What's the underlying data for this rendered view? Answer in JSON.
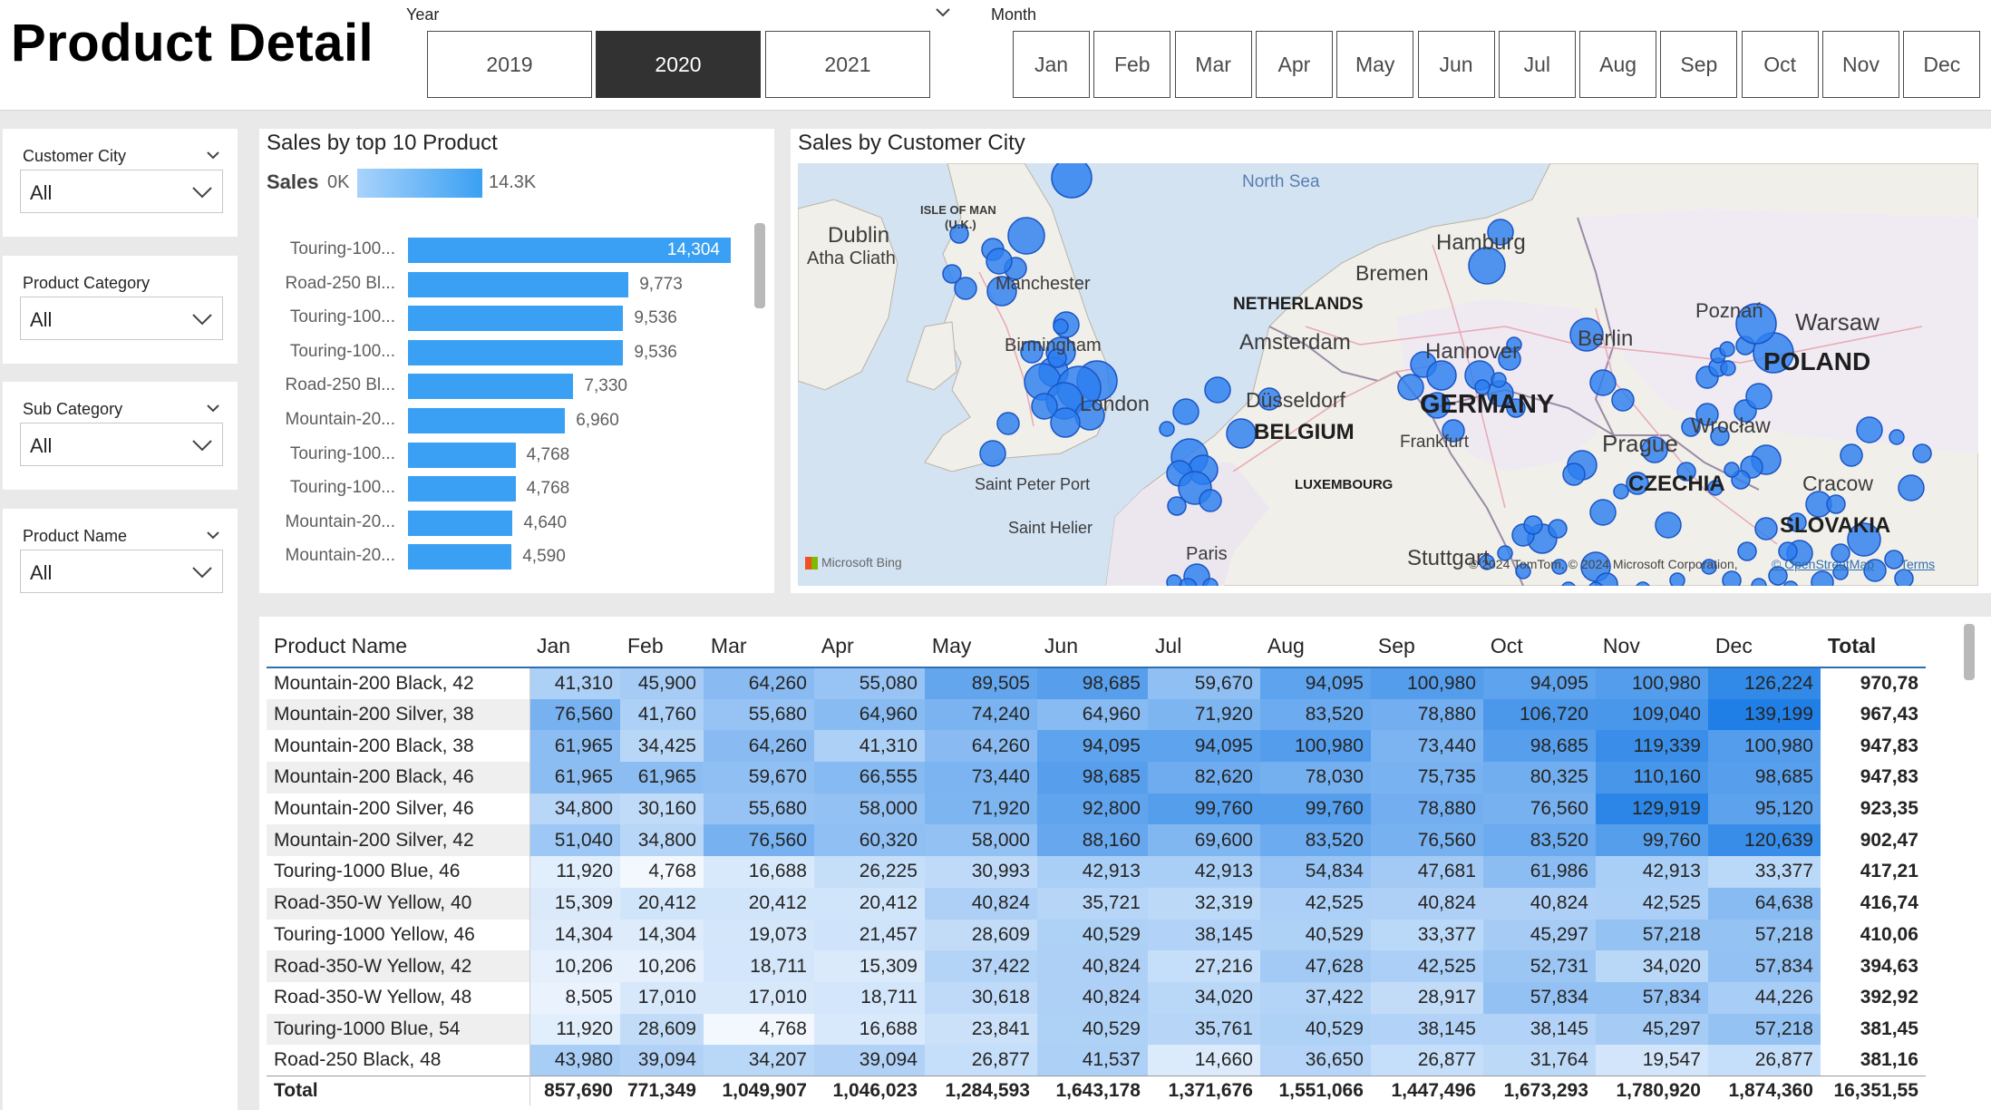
{
  "page_title": "Product Detail",
  "year_slicer": {
    "label": "Year",
    "options": [
      "2019",
      "2020",
      "2021"
    ],
    "selected": "2020"
  },
  "month_slicer": {
    "label": "Month",
    "options": [
      "Jan",
      "Feb",
      "Mar",
      "Apr",
      "May",
      "Jun",
      "Jul",
      "Aug",
      "Sep",
      "Oct",
      "Nov",
      "Dec"
    ]
  },
  "left_slicers": [
    {
      "label": "Customer City",
      "value": "All"
    },
    {
      "label": "Product Category",
      "value": "All"
    },
    {
      "label": "Sub Category",
      "value": "All"
    },
    {
      "label": "Product Name",
      "value": "All"
    }
  ],
  "bar_chart": {
    "title": "Sales by top 10 Product",
    "legend_label": "Sales",
    "legend_min": "0K",
    "legend_max": "14.3K"
  },
  "chart_data": {
    "type": "bar",
    "orientation": "horizontal",
    "title": "Sales by top 10 Product",
    "categories": [
      "Touring-100...",
      "Road-250 Bl...",
      "Touring-100...",
      "Touring-100...",
      "Road-250 Bl...",
      "Mountain-20...",
      "Touring-100...",
      "Touring-100...",
      "Mountain-20...",
      "Mountain-20..."
    ],
    "values": [
      14304,
      9773,
      9536,
      9536,
      7330,
      6960,
      4768,
      4768,
      4640,
      4590
    ],
    "value_labels": [
      "14,304",
      "9,773",
      "9,536",
      "9,536",
      "7,330",
      "6,960",
      "4,768",
      "4,768",
      "4,640",
      "4,590"
    ],
    "xlim": [
      0,
      14304
    ],
    "color_gradient": [
      "#a9d3fb",
      "#3aa0f3"
    ]
  },
  "map": {
    "title": "Sales by Customer City",
    "labels": {
      "north_sea": "North Sea",
      "isle_of_man": "ISLE OF MAN",
      "uk": "(U.K.)",
      "dublin": "Dublin",
      "atha_cliath": "Atha Cliath",
      "hamburg": "Hamburg",
      "bremen": "Bremen",
      "netherlands": "NETHERLANDS",
      "poznan": "Poznań",
      "warsaw": "Warsaw",
      "manchester": "Manchester",
      "amsterdam": "Amsterdam",
      "hannover": "Hannover",
      "berlin": "Berlin",
      "poland": "POLAND",
      "birmingham": "Birmingham",
      "dusseldorf": "Düsseldorf",
      "germany": "GERMANY",
      "london": "London",
      "belgium": "BELGIUM",
      "wroclaw": "Wrocław",
      "frankfurt": "Frankfurt",
      "prague": "Prague",
      "saint_peter_port": "Saint Peter Port",
      "luxembourg": "LUXEMBOURG",
      "czechia": "CZECHIA",
      "cracow": "Cracow",
      "saint_helier": "Saint Helier",
      "slovakia": "SLOVAKIA",
      "paris": "Paris",
      "stuttgart": "Stuttgart",
      "bing": "Microsoft Bing",
      "copyright": "© 2024 TomTom, © 2024 Microsoft Corporation,",
      "osm": "© OpenStreetMap",
      "terms": "Terms"
    }
  },
  "matrix": {
    "columns": [
      "Product Name",
      "Jan",
      "Feb",
      "Mar",
      "Apr",
      "May",
      "Jun",
      "Jul",
      "Aug",
      "Sep",
      "Oct",
      "Nov",
      "Dec",
      "Total"
    ],
    "rows": [
      {
        "name": "Mountain-200 Black, 42",
        "values": [
          "41,310",
          "45,900",
          "64,260",
          "55,080",
          "89,505",
          "98,685",
          "59,670",
          "94,095",
          "100,980",
          "94,095",
          "100,980",
          "126,224"
        ],
        "total": "970,78"
      },
      {
        "name": "Mountain-200 Silver, 38",
        "values": [
          "76,560",
          "41,760",
          "55,680",
          "64,960",
          "74,240",
          "64,960",
          "71,920",
          "83,520",
          "78,880",
          "106,720",
          "109,040",
          "139,199"
        ],
        "total": "967,43"
      },
      {
        "name": "Mountain-200 Black, 38",
        "values": [
          "61,965",
          "34,425",
          "64,260",
          "41,310",
          "64,260",
          "94,095",
          "94,095",
          "100,980",
          "73,440",
          "98,685",
          "119,339",
          "100,980"
        ],
        "total": "947,83"
      },
      {
        "name": "Mountain-200 Black, 46",
        "values": [
          "61,965",
          "61,965",
          "59,670",
          "66,555",
          "73,440",
          "98,685",
          "82,620",
          "78,030",
          "75,735",
          "80,325",
          "110,160",
          "98,685"
        ],
        "total": "947,83"
      },
      {
        "name": "Mountain-200 Silver, 46",
        "values": [
          "34,800",
          "30,160",
          "55,680",
          "58,000",
          "71,920",
          "92,800",
          "99,760",
          "99,760",
          "78,880",
          "76,560",
          "129,919",
          "95,120"
        ],
        "total": "923,35"
      },
      {
        "name": "Mountain-200 Silver, 42",
        "values": [
          "51,040",
          "34,800",
          "76,560",
          "60,320",
          "58,000",
          "88,160",
          "69,600",
          "83,520",
          "76,560",
          "83,520",
          "99,760",
          "120,639"
        ],
        "total": "902,47"
      },
      {
        "name": "Touring-1000 Blue, 46",
        "values": [
          "11,920",
          "4,768",
          "16,688",
          "26,225",
          "30,993",
          "42,913",
          "42,913",
          "54,834",
          "47,681",
          "61,986",
          "42,913",
          "33,377"
        ],
        "total": "417,21"
      },
      {
        "name": "Road-350-W Yellow, 40",
        "values": [
          "15,309",
          "20,412",
          "20,412",
          "20,412",
          "40,824",
          "35,721",
          "32,319",
          "42,525",
          "40,824",
          "40,824",
          "42,525",
          "64,638"
        ],
        "total": "416,74"
      },
      {
        "name": "Touring-1000 Yellow, 46",
        "values": [
          "14,304",
          "14,304",
          "19,073",
          "21,457",
          "28,609",
          "40,529",
          "38,145",
          "40,529",
          "33,377",
          "45,297",
          "57,218",
          "57,218"
        ],
        "total": "410,06"
      },
      {
        "name": "Road-350-W Yellow, 42",
        "values": [
          "10,206",
          "10,206",
          "18,711",
          "15,309",
          "37,422",
          "40,824",
          "27,216",
          "47,628",
          "42,525",
          "52,731",
          "34,020",
          "57,834"
        ],
        "total": "394,63"
      },
      {
        "name": "Road-350-W Yellow, 48",
        "values": [
          "8,505",
          "17,010",
          "17,010",
          "18,711",
          "30,618",
          "40,824",
          "34,020",
          "37,422",
          "28,917",
          "57,834",
          "57,834",
          "44,226"
        ],
        "total": "392,92"
      },
      {
        "name": "Touring-1000 Blue, 54",
        "values": [
          "11,920",
          "28,609",
          "4,768",
          "16,688",
          "23,841",
          "40,529",
          "35,761",
          "40,529",
          "38,145",
          "38,145",
          "45,297",
          "57,218"
        ],
        "total": "381,45"
      },
      {
        "name": "Road-250 Black, 48",
        "values": [
          "43,980",
          "39,094",
          "34,207",
          "39,094",
          "26,877",
          "41,537",
          "14,660",
          "36,650",
          "26,877",
          "31,764",
          "19,547",
          "26,877"
        ],
        "total": "381,16"
      }
    ],
    "total_row": {
      "name": "Total",
      "values": [
        "857,690",
        "771,349",
        "1,049,907",
        "1,046,023",
        "1,284,593",
        "1,643,178",
        "1,371,676",
        "1,551,066",
        "1,447,496",
        "1,673,293",
        "1,780,920",
        "1,874,360"
      ],
      "total": "16,351,55"
    },
    "heat_colors": {
      "low": "#f3f8fe",
      "high": "#1f7fe6"
    }
  }
}
